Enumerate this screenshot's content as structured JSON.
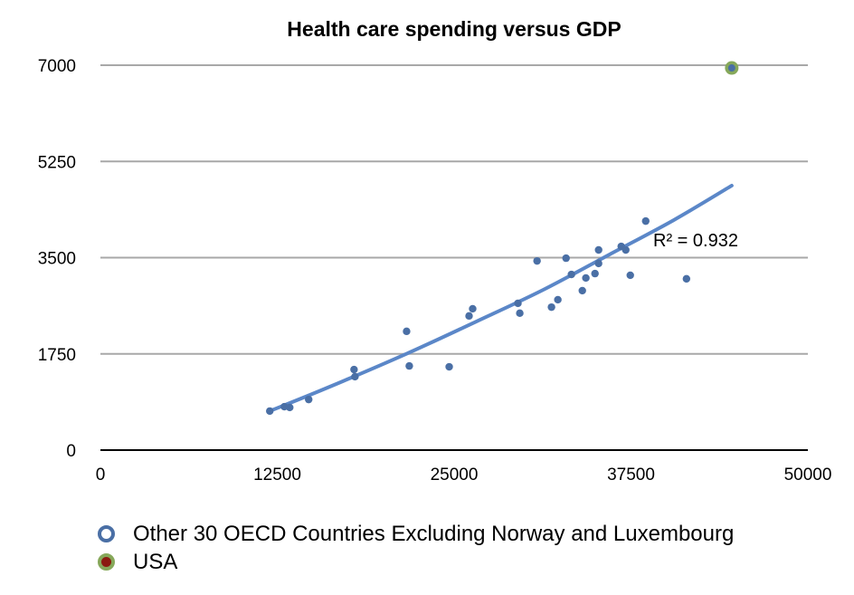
{
  "chart_data": {
    "type": "scatter",
    "title": "Health care spending versus GDP",
    "xlabel": "",
    "ylabel": "",
    "xlim": [
      0,
      50000
    ],
    "ylim": [
      0,
      7000
    ],
    "x_ticks": [
      "0",
      "12500",
      "25000",
      "37500",
      "50000"
    ],
    "y_ticks": [
      "0",
      "1750",
      "3500",
      "5250",
      "7000"
    ],
    "grid": "horizontal",
    "legend_position": "bottom-left",
    "series": [
      {
        "name": "Other 30 OECD Countries Excluding Norway and Luxembourg",
        "marker_color": "#4a6fa5",
        "legend_ring_color": "#4a6fa5",
        "points": [
          [
            11970,
            710
          ],
          [
            13000,
            790
          ],
          [
            13380,
            775
          ],
          [
            14720,
            920
          ],
          [
            17925,
            1465
          ],
          [
            17990,
            1335
          ],
          [
            21640,
            2160
          ],
          [
            21830,
            1530
          ],
          [
            24650,
            1515
          ],
          [
            26055,
            2440
          ],
          [
            26310,
            2570
          ],
          [
            29510,
            2670
          ],
          [
            29640,
            2490
          ],
          [
            30860,
            3440
          ],
          [
            31880,
            2600
          ],
          [
            32330,
            2735
          ],
          [
            32910,
            3490
          ],
          [
            33290,
            3195
          ],
          [
            34060,
            2900
          ],
          [
            34310,
            3130
          ],
          [
            34955,
            3210
          ],
          [
            35210,
            3395
          ],
          [
            35210,
            3640
          ],
          [
            36810,
            3705
          ],
          [
            37130,
            3640
          ],
          [
            37450,
            3180
          ],
          [
            38540,
            4165
          ],
          [
            41420,
            3115
          ]
        ]
      },
      {
        "name": "USA",
        "marker_color": "#4a6fa5",
        "ring_color": "#86a85a",
        "legend_fill_color": "#8b1a10",
        "legend_ring_color": "#86a85a",
        "points": [
          [
            44620,
            6950
          ]
        ]
      }
    ],
    "trendline": {
      "type": "polynomial",
      "color": "#5b87c8",
      "points": [
        [
          11970,
          710
        ],
        [
          16000,
          1130
        ],
        [
          21700,
          1760
        ],
        [
          26500,
          2330
        ],
        [
          31300,
          2915
        ],
        [
          36000,
          3560
        ],
        [
          40500,
          4180
        ],
        [
          44620,
          4810
        ]
      ],
      "r_squared_label": "R² = 0.932",
      "r_squared": 0.932
    }
  }
}
